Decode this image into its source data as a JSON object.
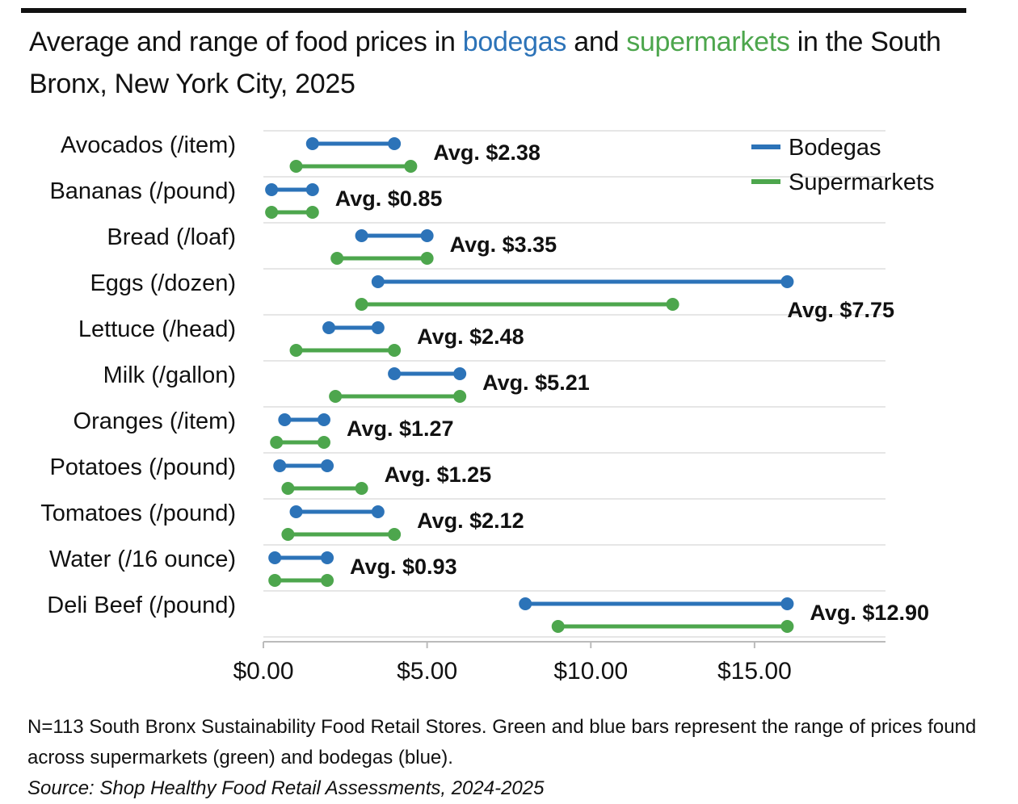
{
  "title": {
    "part1": "Average and range of food prices in ",
    "bodegas": "bodegas",
    "part2": " and ",
    "supermarkets": "supermarkets",
    "part3": " in the South Bronx, New York City, 2025"
  },
  "colors": {
    "bodegas": "#2c73b8",
    "supermarkets": "#4da64d",
    "grid": "#e6e6e6",
    "axis": "#bbbbbb"
  },
  "footer": {
    "note": "N=113 South Bronx Sustainability Food Retail Stores. Green and blue bars represent the range of prices found across supermarkets (green) and bodegas (blue).",
    "source": "Source: Shop Healthy Food Retail Assessments, 2024-2025"
  },
  "chart_data": {
    "type": "dumbbell",
    "xlim": [
      0,
      19
    ],
    "x_ticks": [
      0,
      5,
      10,
      15
    ],
    "x_tick_labels": [
      "$0.00",
      "$5.00",
      "$10.00",
      "$15.00"
    ],
    "legend": {
      "position": "top-right",
      "entries": [
        "Bodegas",
        "Supermarkets"
      ]
    },
    "categories": [
      "Avocados (/item)",
      "Bananas (/pound)",
      "Bread (/loaf)",
      "Eggs (/dozen)",
      "Lettuce (/head)",
      "Milk (/gallon)",
      "Oranges (/item)",
      "Potatoes (/pound)",
      "Tomatoes (/pound)",
      "Water (/16 ounce)",
      "Deli Beef (/pound)"
    ],
    "series": [
      {
        "name": "Bodegas",
        "ranges": [
          [
            1.5,
            4.0
          ],
          [
            0.25,
            1.5
          ],
          [
            3.0,
            5.0
          ],
          [
            3.5,
            16.0
          ],
          [
            2.0,
            3.5
          ],
          [
            4.0,
            6.0
          ],
          [
            0.65,
            1.85
          ],
          [
            0.5,
            1.95
          ],
          [
            1.0,
            3.5
          ],
          [
            0.35,
            1.95
          ],
          [
            8.0,
            16.0
          ]
        ]
      },
      {
        "name": "Supermarkets",
        "ranges": [
          [
            1.0,
            4.5
          ],
          [
            0.25,
            1.5
          ],
          [
            2.25,
            5.0
          ],
          [
            3.0,
            12.5
          ],
          [
            1.0,
            4.0
          ],
          [
            2.2,
            6.0
          ],
          [
            0.4,
            1.85
          ],
          [
            0.75,
            3.0
          ],
          [
            0.75,
            4.0
          ],
          [
            0.35,
            1.95
          ],
          [
            9.0,
            16.0
          ]
        ]
      }
    ],
    "avg_labels": [
      "Avg. $2.38",
      "Avg. $0.85",
      "Avg. $3.35",
      "Avg. $7.75",
      "Avg. $2.48",
      "Avg. $5.21",
      "Avg. $1.27",
      "Avg. $1.25",
      "Avg. $2.12",
      "Avg. $0.93",
      "Avg. $12.90"
    ]
  }
}
